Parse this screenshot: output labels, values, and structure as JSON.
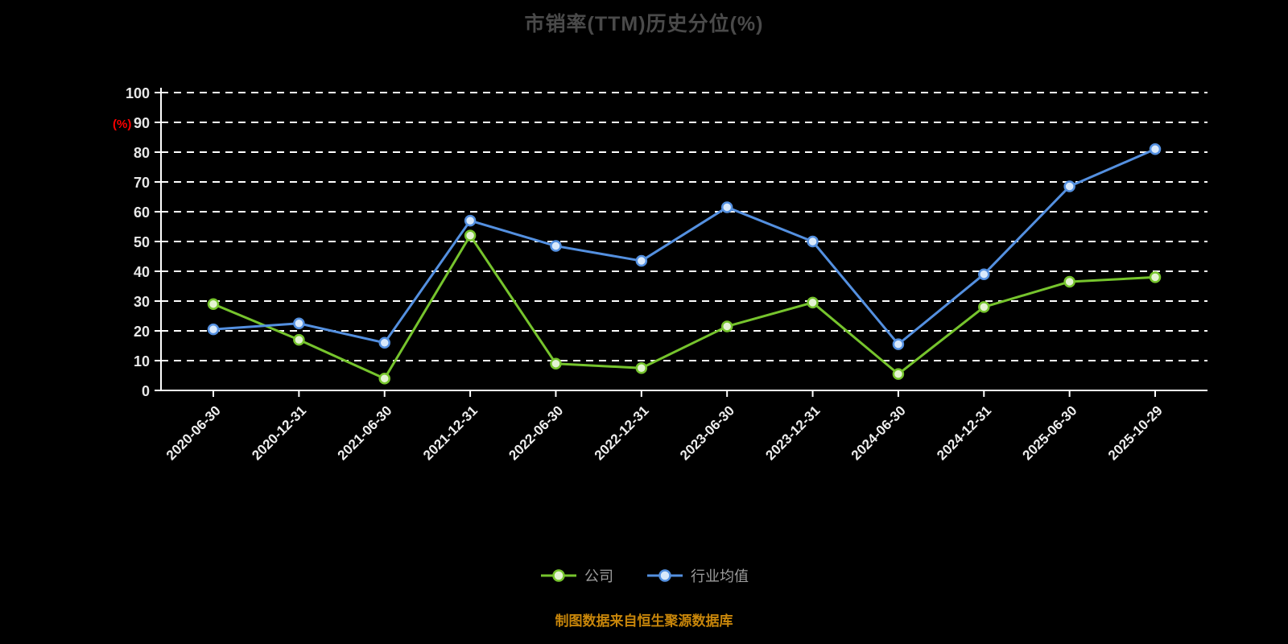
{
  "page": {
    "background": "#000000",
    "source_note": "制图数据来自恒生聚源数据库"
  },
  "chart_data": {
    "type": "line",
    "title": "市销率(TTM)历史分位(%)",
    "xlabel": "",
    "ylabel": "(%)",
    "ylim": [
      0,
      100
    ],
    "ytick_step": 10,
    "grid": true,
    "grid_style": "dashed-white",
    "legend_position": "bottom",
    "categories": [
      "2020-06-30",
      "2020-12-31",
      "2021-06-30",
      "2021-12-31",
      "2022-06-30",
      "2022-12-31",
      "2023-06-30",
      "2023-12-31",
      "2024-06-30",
      "2024-12-31",
      "2025-06-30",
      "2025-10-29"
    ],
    "series": [
      {
        "name": "公司",
        "color": "#76c42d",
        "marker_fill": "#e4f3d3",
        "values": [
          29,
          17,
          4,
          52,
          9,
          7.5,
          21.5,
          29.5,
          5.5,
          28,
          36.5,
          38
        ]
      },
      {
        "name": "行业均值",
        "color": "#5490e0",
        "marker_fill": "#d9e9fb",
        "values": [
          20.5,
          22.5,
          16,
          57,
          48.5,
          43.5,
          61.5,
          50,
          15.5,
          39,
          68.5,
          81
        ]
      }
    ]
  }
}
